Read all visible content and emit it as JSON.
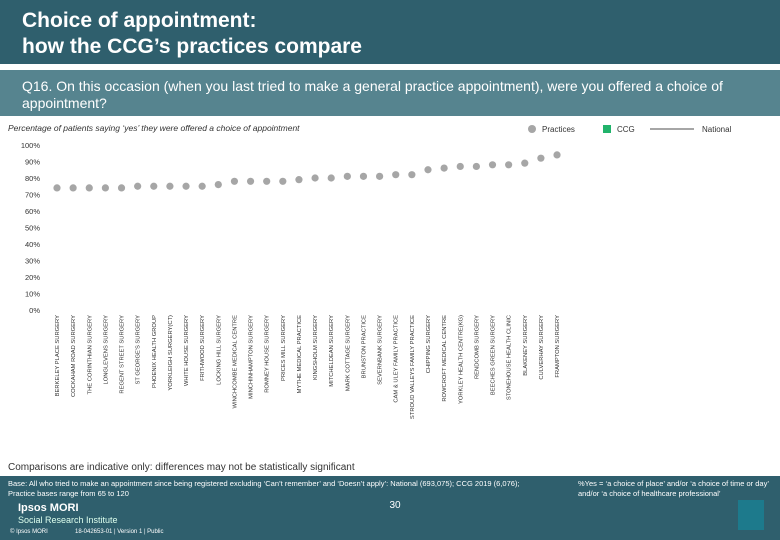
{
  "header": {
    "title": "Choice of appointment:\nhow the CCG’s practices compare",
    "question": "Q16. On this occasion (when you last tried to make a general practice appointment), were you offered a choice of appointment?"
  },
  "chart_data": {
    "type": "scatter",
    "subtitle": "Percentage of patients saying ‘yes’ they were offered a choice of appointment",
    "legend": [
      {
        "name": "Practices",
        "color": "#a6a6a6",
        "shape": "dot"
      },
      {
        "name": "CCG",
        "color": "#21b36b",
        "shape": "square"
      },
      {
        "name": "National",
        "color": "#a6a6a6",
        "shape": "line"
      }
    ],
    "legend_position": "top-right",
    "categories": [
      "BERKELEY PLACE SURGERY",
      "COCKAHAM ROAD SURGERY",
      "THE CORINTHIAN SURGERY",
      "LONGLEVENS SURGERY",
      "REGENT STREET SURGERY",
      "ST GEORGE'S SURGERY",
      "PHOENIX HEALTH GROUP",
      "YORKLEIGH SURGERY(CT)",
      "WHITE HOUSE SURGERY",
      "FRITHWOOD SURGERY",
      "LOCKING HILL SURGERY",
      "WINCHCOMBE MEDICAL CENTRE",
      "MINCHINHAMPTON SURGERY",
      "ROMNEY HOUSE SURGERY",
      "PRICES MILL SURGERY",
      "MYTHE MEDICAL PRACTICE",
      "KINGSHOLM SURGERY",
      "MITCHELDEAN SURGERY",
      "MARK COTTAGE SURGERY",
      "BRUNSTON PRACTICE",
      "SEVERNBANK SURGERY",
      "CAM & ULEY FAMILY PRACTICE",
      "STROUD VALLEYS FAMILY PRACTICE",
      "CHIPPING SURGERY",
      "ROWCROFT MEDICAL CENTRE",
      "YORKLEY HEALTH CENTRE(KG)",
      "RENDCOMB SURGERY",
      "BEECHES GREEN SURGERY",
      "STONEHOUSE HEALTH CLINIC",
      "BLAKENEY SURGERY",
      "CULVERHAY SURGERY",
      "FRAMPTON SURGERY"
    ],
    "series": [
      {
        "name": "Practices",
        "color": "#a6a6a6",
        "values": [
          74,
          74,
          74,
          74,
          74,
          75,
          75,
          75,
          75,
          75,
          76,
          78,
          78,
          78,
          78,
          79,
          80,
          80,
          81,
          81,
          81,
          82,
          82,
          85,
          86,
          87,
          87,
          88,
          88,
          89,
          92,
          94
        ]
      }
    ],
    "ylim": [
      0,
      100
    ],
    "yticks": [
      {
        "value": 0,
        "label": "0%"
      },
      {
        "value": 10,
        "label": "10%"
      },
      {
        "value": 20,
        "label": "20%"
      },
      {
        "value": 30,
        "label": "30%"
      },
      {
        "value": 40,
        "label": "40%"
      },
      {
        "value": 50,
        "label": "50%"
      },
      {
        "value": 60,
        "label": "60%"
      },
      {
        "value": 70,
        "label": "70%"
      },
      {
        "value": 80,
        "label": "80%"
      },
      {
        "value": 90,
        "label": "90%"
      },
      {
        "value": 100,
        "label": "100%"
      }
    ]
  },
  "footer": {
    "note": "Comparisons are indicative only: differences may not be statistically significant",
    "base": "Base: All who tried to make an appointment since being registered excluding ‘Can’t remember’ and ‘Doesn’t apply’: National (693,075); CCG 2019 (6,076); Practice bases range from 65 to 120",
    "page": "30",
    "definition": "%Yes = ‘a choice of place’ and/or ‘a choice of time or day’ and/or ‘a choice of healthcare professional’",
    "brand": "Ipsos MORI",
    "institute": "Social Research Institute",
    "copyright": "© Ipsos MORI",
    "job": "18-042653-01 | Version 1 | Public"
  }
}
